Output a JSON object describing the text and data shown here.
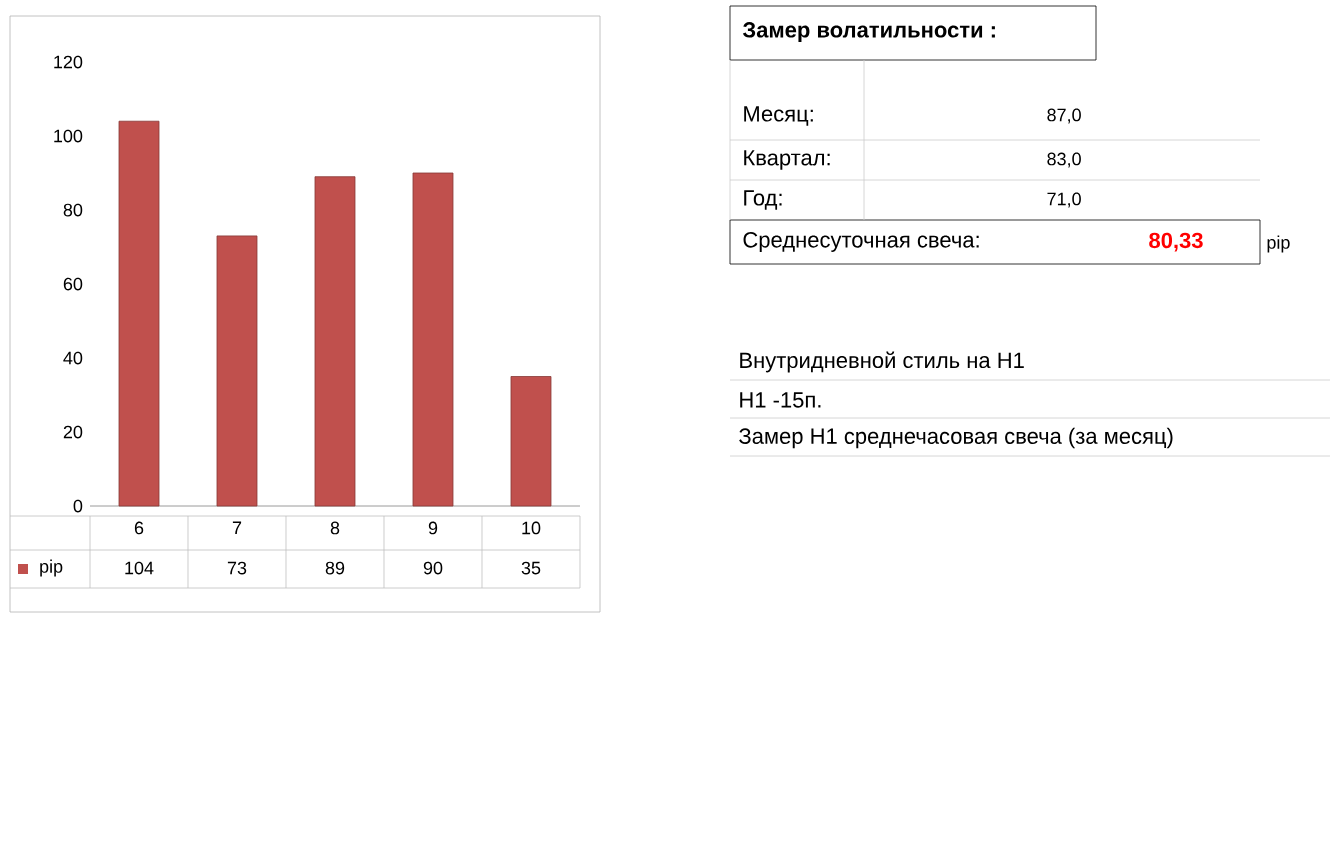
{
  "chart_data": [
    {
      "type": "bar",
      "categories": [
        "6",
        "7",
        "8",
        "9",
        "10"
      ],
      "series": [
        {
          "name": "pip",
          "color": "#c0504d",
          "values": [
            104,
            73,
            89,
            90,
            35
          ]
        }
      ],
      "ylim": [
        0,
        120
      ],
      "yticks": [
        0,
        20,
        40,
        60,
        80,
        100,
        120
      ],
      "grid": false,
      "data_labels": true,
      "legend": "bottom"
    },
    {
      "type": "other",
      "annotations": [
        "Замер  волатильности  :",
        "Месяц:",
        "87,0",
        "Квартал:",
        "83,0",
        "Год:",
        "71,0",
        "Среднесуточная свеча:",
        "80,33",
        "pip",
        "Внутридневной стиль на H1",
        "H1 -15п.",
        "Замер H1 среднечасовая свеча (за месяц)"
      ]
    }
  ]
}
